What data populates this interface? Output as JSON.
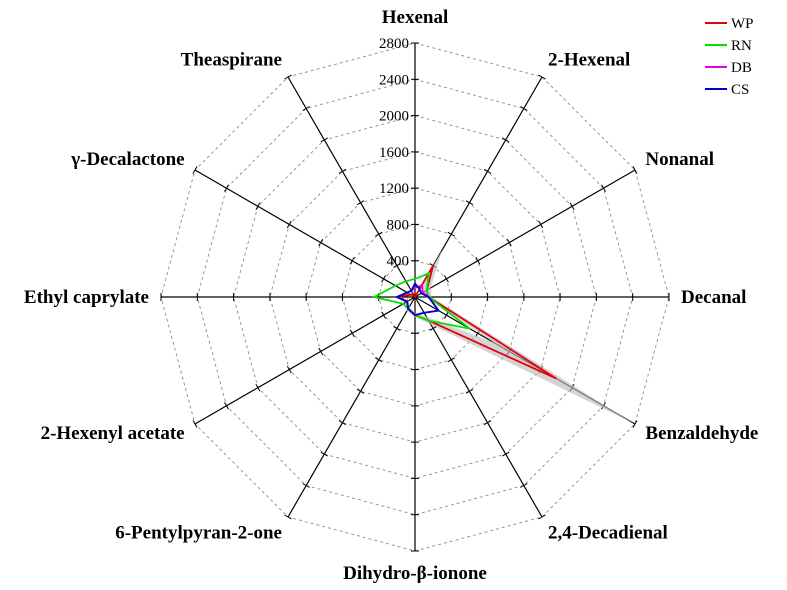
{
  "chart_data": {
    "type": "radar",
    "axes": [
      "Hexenal",
      "2-Hexenal",
      "Nonanal",
      "Decanal",
      "Benzaldehyde",
      "2,4-Decadienal",
      "Dihydro-β-ionone",
      "6-Pentylpyran-2-one",
      "2-Hexenyl acetate",
      "Ethyl caprylate",
      "γ-Decalactone",
      "Theaspirane"
    ],
    "ticks": [
      0,
      400,
      800,
      1200,
      1600,
      2000,
      2400,
      2800
    ],
    "range": [
      0,
      2800
    ],
    "grid": true,
    "legend_position": "top-right",
    "series": [
      {
        "name": "WP",
        "color": "#e8000b",
        "values": [
          0,
          400,
          150,
          150,
          1800,
          300,
          200,
          150,
          100,
          200,
          50,
          40
        ]
      },
      {
        "name": "RN",
        "color": "#00e000",
        "values": [
          200,
          300,
          150,
          150,
          700,
          300,
          200,
          150,
          150,
          450,
          250,
          200
        ]
      },
      {
        "name": "DB",
        "color": "#e000e0",
        "values": [
          100,
          150,
          100,
          150,
          300,
          200,
          200,
          150,
          100,
          200,
          100,
          80
        ]
      },
      {
        "name": "CS",
        "color": "#0000d0",
        "values": [
          150,
          100,
          80,
          150,
          300,
          200,
          200,
          150,
          100,
          200,
          100,
          80
        ]
      }
    ],
    "band": {
      "upper": [
        0,
        600,
        200,
        180,
        2800,
        350,
        220,
        180,
        120,
        220,
        80,
        60
      ],
      "lower": [
        0,
        150,
        80,
        120,
        1000,
        250,
        180,
        120,
        80,
        150,
        30,
        20
      ]
    }
  }
}
